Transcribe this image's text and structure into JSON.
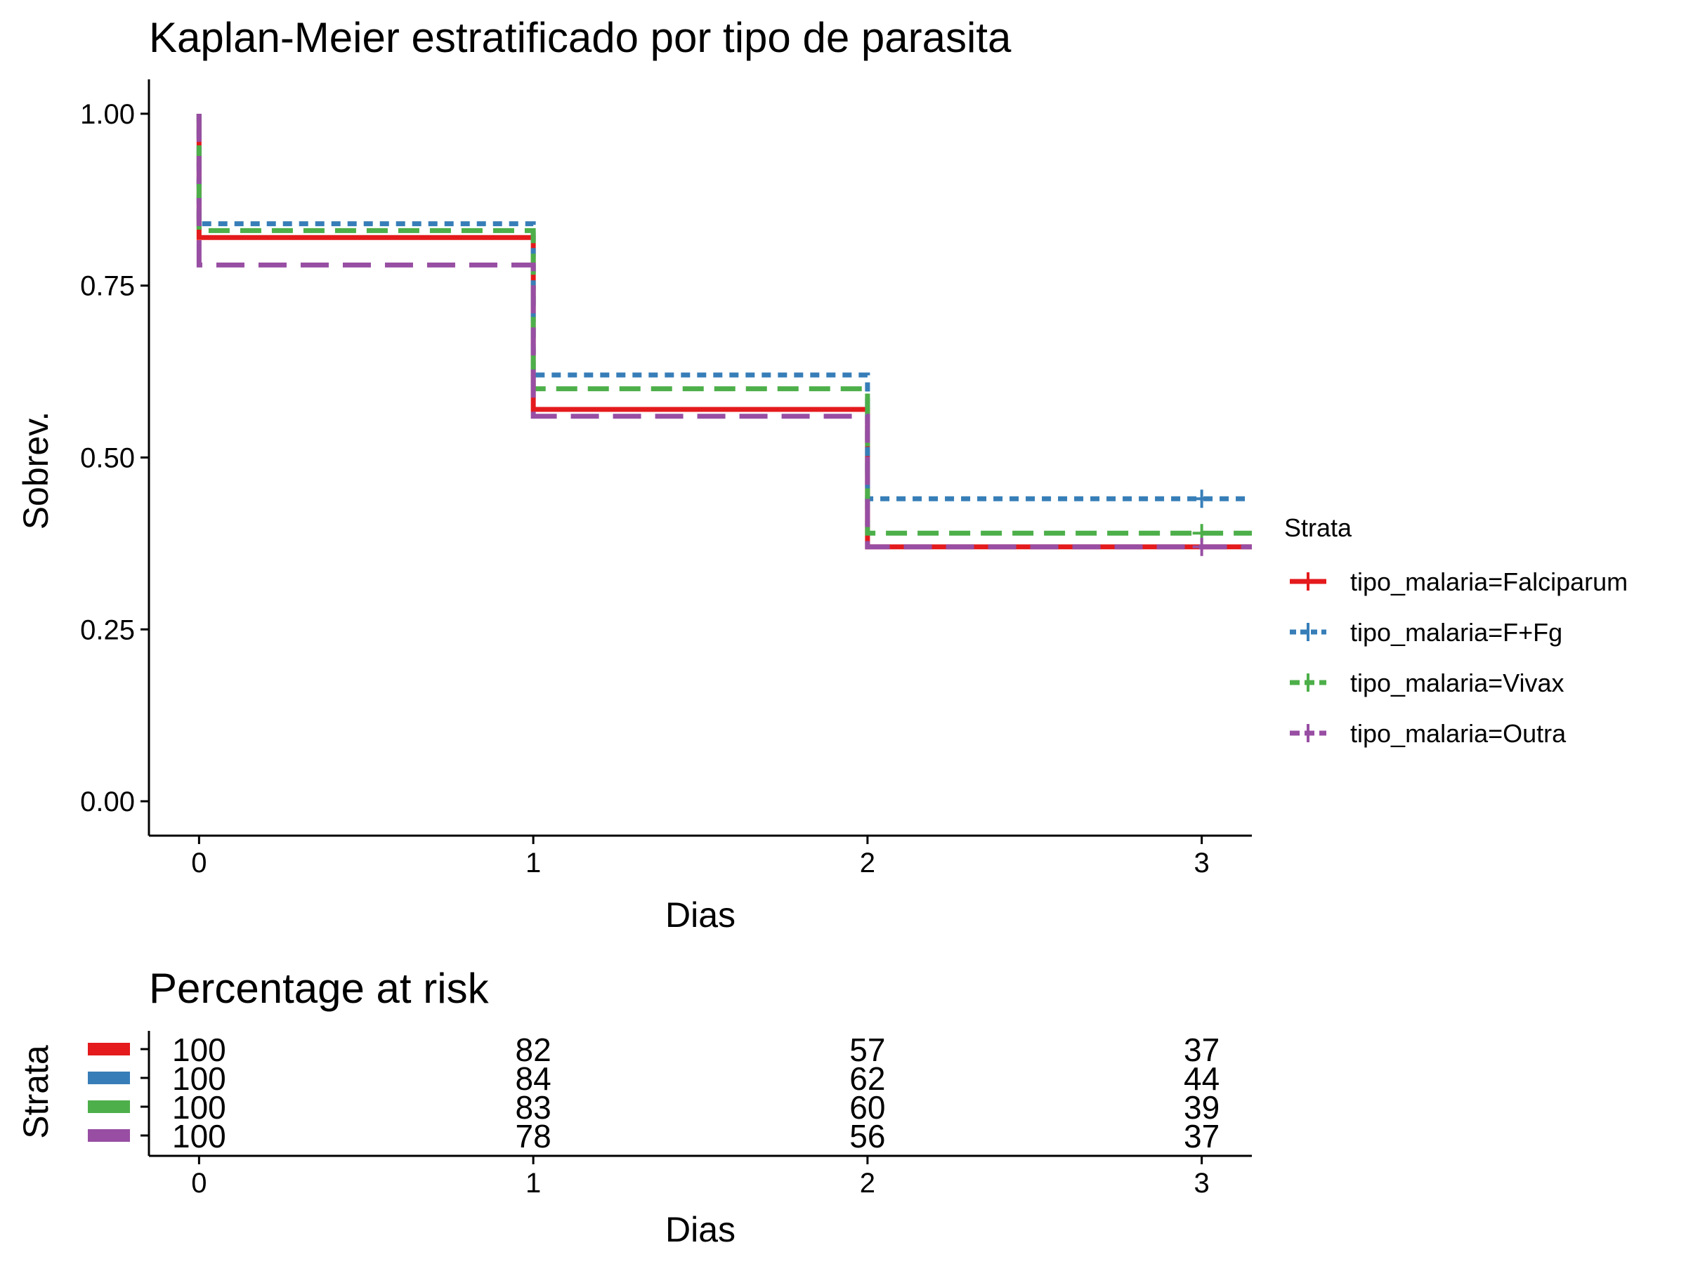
{
  "chart_data": [
    {
      "type": "line",
      "subtype": "kaplan-meier-step",
      "title": "Kaplan-Meier estratificado por tipo de parasita",
      "xlabel": "Dias",
      "ylabel": "Sobrev.",
      "xlim": [
        -0.15,
        3.15
      ],
      "ylim": [
        -0.05,
        1.05
      ],
      "x_ticks": [
        0,
        1,
        2,
        3
      ],
      "y_ticks": [
        0.0,
        0.25,
        0.5,
        0.75,
        1.0
      ],
      "y_tick_labels": [
        "0.00",
        "0.25",
        "0.50",
        "0.75",
        "1.00"
      ],
      "grid": false,
      "legend": {
        "title": "Strata",
        "position": "right"
      },
      "series": [
        {
          "name": "tipo_malaria=Falciparum",
          "color": "#e41a1c",
          "dash": "solid",
          "x": [
            0,
            0,
            1,
            2,
            3.15
          ],
          "y": [
            1.0,
            0.82,
            0.57,
            0.37,
            0.37
          ],
          "censor": []
        },
        {
          "name": "tipo_malaria=F+Fg",
          "color": "#377eb8",
          "dash": "dotted",
          "x": [
            0,
            0,
            1,
            2,
            3.15
          ],
          "y": [
            1.0,
            0.84,
            0.62,
            0.44,
            0.44
          ],
          "censor": [
            [
              3,
              0.44
            ]
          ]
        },
        {
          "name": "tipo_malaria=Vivax",
          "color": "#4daf4a",
          "dash": "dashed",
          "x": [
            0,
            0,
            1,
            2,
            3.15
          ],
          "y": [
            1.0,
            0.83,
            0.6,
            0.39,
            0.39
          ],
          "censor": [
            [
              3,
              0.39
            ]
          ]
        },
        {
          "name": "tipo_malaria=Outra",
          "color": "#984ea3",
          "dash": "longdash",
          "x": [
            0,
            0,
            1,
            2,
            3.15
          ],
          "y": [
            1.0,
            0.78,
            0.56,
            0.37,
            0.37
          ],
          "censor": [
            [
              3,
              0.37
            ]
          ]
        }
      ]
    },
    {
      "type": "table",
      "title": "Percentage at risk",
      "xlabel": "Dias",
      "ylabel": "Strata",
      "x_ticks": [
        0,
        1,
        2,
        3
      ],
      "rows": [
        {
          "color": "#e41a1c",
          "values": [
            "100",
            "82",
            "57",
            "37"
          ]
        },
        {
          "color": "#377eb8",
          "values": [
            "100",
            "84",
            "62",
            "44"
          ]
        },
        {
          "color": "#4daf4a",
          "values": [
            "100",
            "83",
            "60",
            "39"
          ]
        },
        {
          "color": "#984ea3",
          "values": [
            "100",
            "78",
            "56",
            "37"
          ]
        }
      ]
    }
  ]
}
